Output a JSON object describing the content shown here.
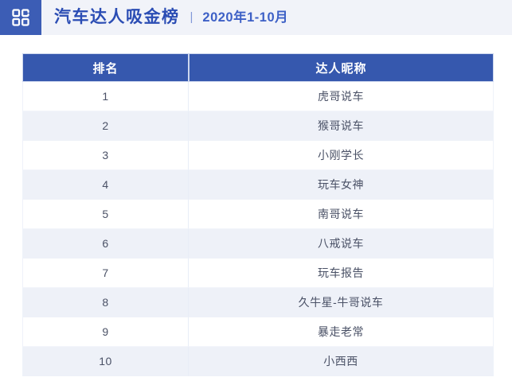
{
  "header": {
    "icon_name": "grid-category-icon",
    "title": "汽车达人吸金榜",
    "separator": "|",
    "period": "2020年1-10月"
  },
  "table": {
    "columns": [
      "排名",
      "达人昵称"
    ],
    "rows": [
      {
        "rank": "1",
        "nickname": "虎哥说车"
      },
      {
        "rank": "2",
        "nickname": "猴哥说车"
      },
      {
        "rank": "3",
        "nickname": "小刚学长"
      },
      {
        "rank": "4",
        "nickname": "玩车女神"
      },
      {
        "rank": "5",
        "nickname": "南哥说车"
      },
      {
        "rank": "6",
        "nickname": "八戒说车"
      },
      {
        "rank": "7",
        "nickname": "玩车报告"
      },
      {
        "rank": "8",
        "nickname": "久牛星-牛哥说车"
      },
      {
        "rank": "9",
        "nickname": "暴走老常"
      },
      {
        "rank": "10",
        "nickname": "小西西"
      }
    ]
  },
  "colors": {
    "table_header_blue": "#3658ae",
    "logo_blue": "#3c5db5",
    "title_blue": "#2b4db4",
    "topbar_bg": "#f1f3f9",
    "row_alt_bg": "#eef1f8",
    "body_text": "#4a5166"
  },
  "chart_data": {
    "type": "table",
    "title": "汽车达人吸金榜",
    "subtitle": "2020年1-10月",
    "columns": [
      "排名",
      "达人昵称"
    ],
    "rows": [
      [
        "1",
        "虎哥说车"
      ],
      [
        "2",
        "猴哥说车"
      ],
      [
        "3",
        "小刚学长"
      ],
      [
        "4",
        "玩车女神"
      ],
      [
        "5",
        "南哥说车"
      ],
      [
        "6",
        "八戒说车"
      ],
      [
        "7",
        "玩车报告"
      ],
      [
        "8",
        "久牛星-牛哥说车"
      ],
      [
        "9",
        "暴走老常"
      ],
      [
        "10",
        "小西西"
      ]
    ]
  }
}
